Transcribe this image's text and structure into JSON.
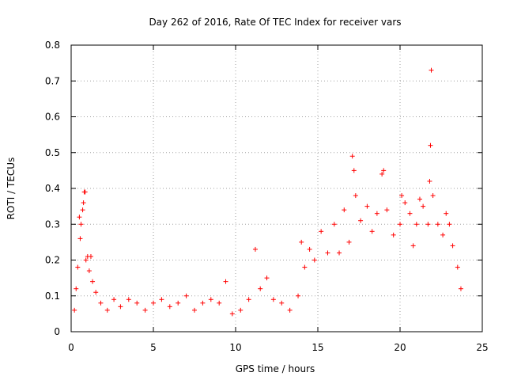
{
  "chart_data": {
    "type": "scatter",
    "title": "Day 262 of 2016, Rate Of TEC Index for receiver vars",
    "xlabel": "GPS time / hours",
    "ylabel": "ROTI / TECUs",
    "xlim": [
      0,
      25
    ],
    "ylim": [
      0,
      0.8
    ],
    "xticks": [
      0,
      5,
      10,
      15,
      20,
      25
    ],
    "yticks": [
      0,
      0.1,
      0.2,
      0.3,
      0.4,
      0.5,
      0.6,
      0.7,
      0.8
    ],
    "xtick_labels": [
      "0",
      "5",
      "10",
      "15",
      "20",
      "25"
    ],
    "ytick_labels": [
      "0",
      "0.1",
      "0.2",
      "0.3",
      "0.4",
      "0.5",
      "0.6",
      "0.7",
      "0.8"
    ],
    "grid": true,
    "marker": "+",
    "color": "#ff0000",
    "series": [
      {
        "name": "ROTI",
        "points": [
          [
            0.2,
            0.06
          ],
          [
            0.3,
            0.12
          ],
          [
            0.4,
            0.18
          ],
          [
            0.5,
            0.32
          ],
          [
            0.55,
            0.26
          ],
          [
            0.6,
            0.3
          ],
          [
            0.7,
            0.34
          ],
          [
            0.75,
            0.36
          ],
          [
            0.8,
            0.39
          ],
          [
            0.85,
            0.39
          ],
          [
            0.9,
            0.2
          ],
          [
            1.0,
            0.21
          ],
          [
            1.1,
            0.17
          ],
          [
            1.2,
            0.21
          ],
          [
            1.3,
            0.14
          ],
          [
            1.5,
            0.11
          ],
          [
            1.8,
            0.08
          ],
          [
            2.2,
            0.06
          ],
          [
            2.6,
            0.09
          ],
          [
            3.0,
            0.07
          ],
          [
            3.5,
            0.09
          ],
          [
            4.0,
            0.08
          ],
          [
            4.5,
            0.06
          ],
          [
            5.0,
            0.08
          ],
          [
            5.5,
            0.09
          ],
          [
            6.0,
            0.07
          ],
          [
            6.5,
            0.08
          ],
          [
            7.0,
            0.1
          ],
          [
            7.5,
            0.06
          ],
          [
            8.0,
            0.08
          ],
          [
            8.5,
            0.09
          ],
          [
            9.0,
            0.08
          ],
          [
            9.4,
            0.14
          ],
          [
            9.8,
            0.05
          ],
          [
            10.3,
            0.06
          ],
          [
            10.8,
            0.09
          ],
          [
            11.2,
            0.23
          ],
          [
            11.5,
            0.12
          ],
          [
            11.9,
            0.15
          ],
          [
            12.3,
            0.09
          ],
          [
            12.8,
            0.08
          ],
          [
            13.3,
            0.06
          ],
          [
            13.8,
            0.1
          ],
          [
            14.0,
            0.25
          ],
          [
            14.2,
            0.18
          ],
          [
            14.5,
            0.23
          ],
          [
            14.8,
            0.2
          ],
          [
            15.2,
            0.28
          ],
          [
            15.6,
            0.22
          ],
          [
            16.0,
            0.3
          ],
          [
            16.3,
            0.22
          ],
          [
            16.6,
            0.34
          ],
          [
            16.9,
            0.25
          ],
          [
            17.1,
            0.49
          ],
          [
            17.2,
            0.45
          ],
          [
            17.3,
            0.38
          ],
          [
            17.6,
            0.31
          ],
          [
            18.0,
            0.35
          ],
          [
            18.3,
            0.28
          ],
          [
            18.6,
            0.33
          ],
          [
            18.9,
            0.44
          ],
          [
            19.0,
            0.45
          ],
          [
            19.2,
            0.34
          ],
          [
            19.6,
            0.27
          ],
          [
            20.0,
            0.3
          ],
          [
            20.1,
            0.38
          ],
          [
            20.3,
            0.36
          ],
          [
            20.6,
            0.33
          ],
          [
            20.8,
            0.24
          ],
          [
            21.0,
            0.3
          ],
          [
            21.2,
            0.37
          ],
          [
            21.4,
            0.35
          ],
          [
            21.7,
            0.3
          ],
          [
            21.8,
            0.42
          ],
          [
            21.85,
            0.52
          ],
          [
            21.9,
            0.73
          ],
          [
            22.0,
            0.38
          ],
          [
            22.3,
            0.3
          ],
          [
            22.6,
            0.27
          ],
          [
            22.8,
            0.33
          ],
          [
            23.0,
            0.3
          ],
          [
            23.2,
            0.24
          ],
          [
            23.5,
            0.18
          ],
          [
            23.7,
            0.12
          ]
        ]
      }
    ]
  }
}
